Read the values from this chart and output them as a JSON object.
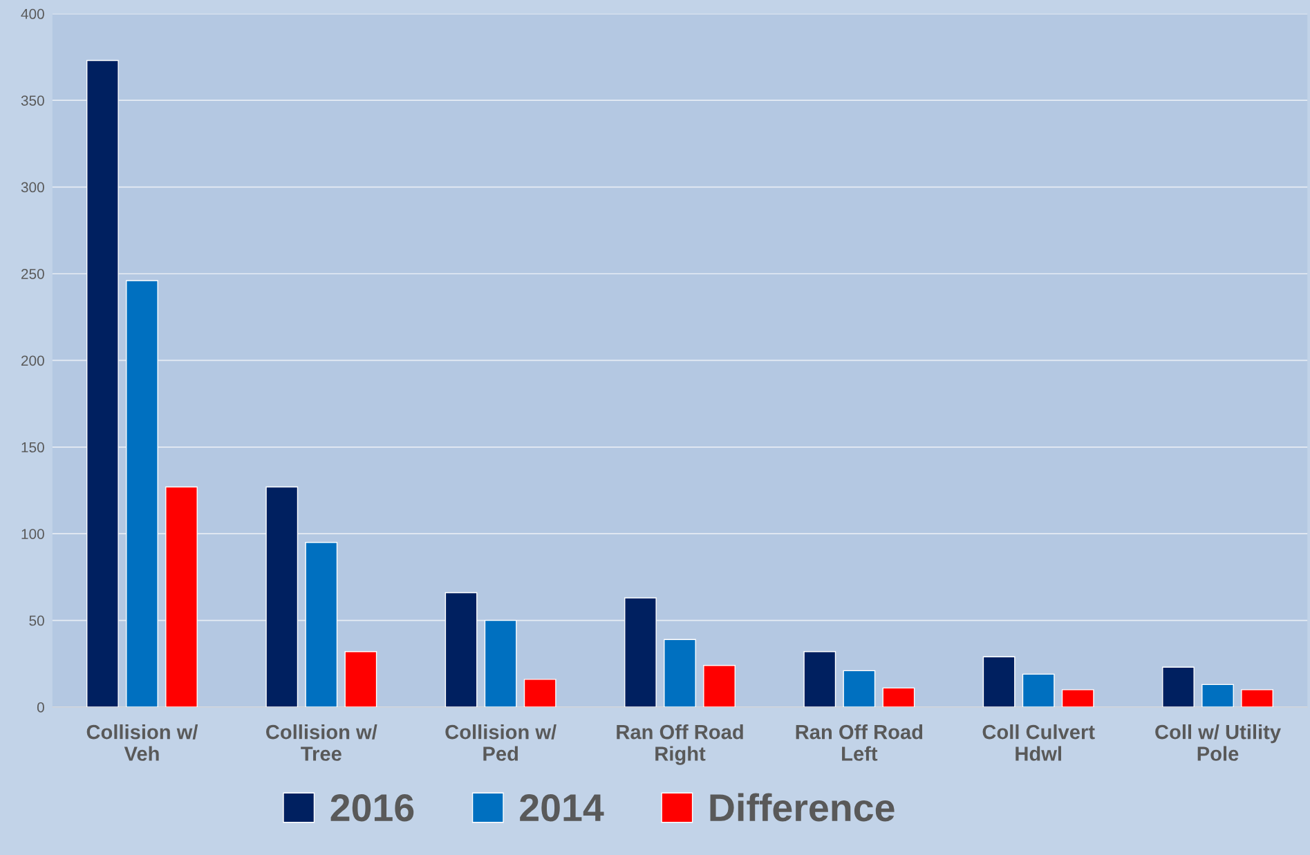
{
  "chart_data": {
    "type": "bar",
    "categories": [
      "Collision w/\nVeh",
      "Collision w/\nTree",
      "Collision w/\nPed",
      "Ran Off Road\nRight",
      "Ran Off Road\nLeft",
      "Coll Culvert\nHdwl",
      "Coll w/ Utility\nPole"
    ],
    "series": [
      {
        "name": "2016",
        "color": "#002060",
        "values": [
          373,
          127,
          66,
          63,
          32,
          29,
          23
        ]
      },
      {
        "name": "2014",
        "color": "#0070c0",
        "values": [
          246,
          95,
          50,
          39,
          21,
          19,
          13
        ]
      },
      {
        "name": "Difference",
        "color": "#ff0000",
        "values": [
          127,
          32,
          16,
          24,
          11,
          10,
          10
        ]
      }
    ],
    "ylim": [
      0,
      400
    ],
    "yticks": [
      0,
      50,
      100,
      150,
      200,
      250,
      300,
      350,
      400
    ],
    "grid": "y",
    "legend": "bottom"
  }
}
